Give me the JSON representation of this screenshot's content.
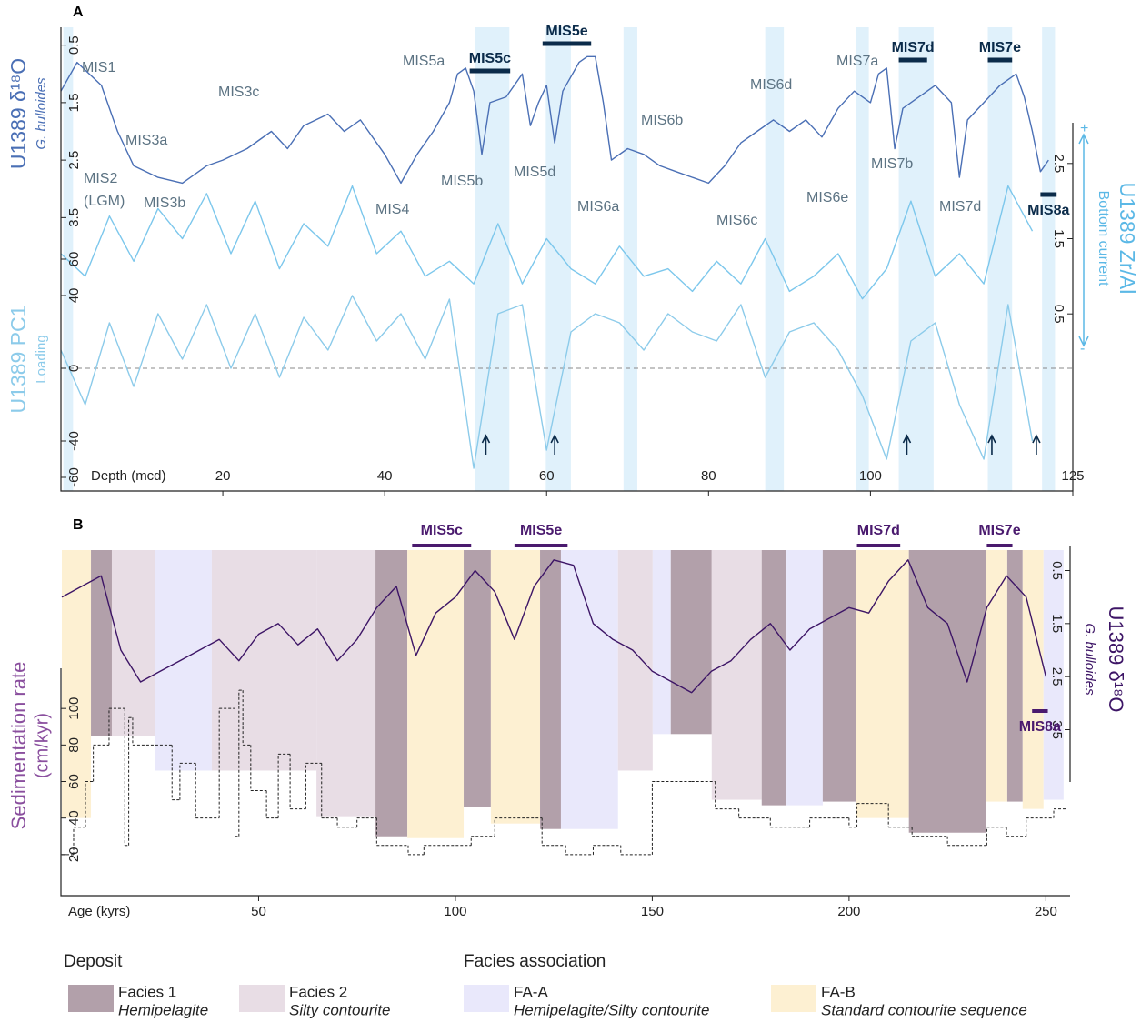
{
  "chart_data": [
    {
      "type": "line",
      "panel": "A",
      "xlabel": "Depth (mcd)",
      "xlim": [
        0,
        125
      ],
      "xticks": [
        20,
        40,
        60,
        80,
        100,
        125
      ],
      "ylabel": "U1389 δ¹⁸O",
      "ylabel_sub": "G. bulloides",
      "ylim": [
        0.3,
        3.7
      ],
      "yticks": [
        0.5,
        1.5,
        2.5,
        3.5
      ],
      "y_inverted": true,
      "y2label": "U1389 Zr/Al",
      "y2label_sub": "Bottom current",
      "y2lim": [
        0.2,
        2.8
      ],
      "y2ticks": [
        0.5,
        1.5,
        2.5
      ],
      "y2_arrow_labels": [
        "+",
        "-"
      ],
      "y3label": "U1389 PC1",
      "y3label_sub": "Loading",
      "y3lim": [
        -65,
        75
      ],
      "y3ticks": [
        -60,
        -40,
        0,
        40,
        60
      ],
      "bands": [
        [
          0.3,
          1.5
        ],
        [
          51.2,
          55.4
        ],
        [
          59.9,
          63
        ],
        [
          69.5,
          71.2
        ],
        [
          87,
          89.3
        ],
        [
          98.2,
          99.8
        ],
        [
          103.5,
          107.8
        ],
        [
          114.5,
          117.5
        ],
        [
          121.2,
          122.8
        ]
      ],
      "series": [
        {
          "name": "U1389 δ¹⁸O",
          "axis": "y",
          "color": "#4a6fb5",
          "x": [
            0,
            2,
            5,
            7,
            9,
            12,
            15,
            18,
            20,
            23,
            26,
            28,
            30,
            33,
            35,
            37,
            40,
            42,
            44,
            46,
            48,
            49,
            50,
            51,
            52,
            53,
            55,
            57,
            58,
            59,
            60,
            61,
            62,
            64,
            65,
            66,
            67,
            68,
            70,
            72,
            74,
            76,
            78,
            80,
            82,
            84,
            86,
            88,
            90,
            92,
            94,
            96,
            98,
            100,
            101,
            102,
            103,
            104,
            106,
            108,
            110,
            111,
            112,
            114,
            116,
            118,
            119,
            120,
            121,
            122
          ],
          "values": [
            1.3,
            0.8,
            1.2,
            2.0,
            2.6,
            2.8,
            2.9,
            2.6,
            2.5,
            2.3,
            2.0,
            2.3,
            1.9,
            1.7,
            2.0,
            1.8,
            2.4,
            2.9,
            2.4,
            2.0,
            1.5,
            1.0,
            0.9,
            1.3,
            2.4,
            1.5,
            1.4,
            1.0,
            1.9,
            1.5,
            1.2,
            2.2,
            1.3,
            0.8,
            0.7,
            0.7,
            1.5,
            2.5,
            2.3,
            2.4,
            2.6,
            2.7,
            2.8,
            2.9,
            2.6,
            2.2,
            2.0,
            1.8,
            2.0,
            1.8,
            2.1,
            1.6,
            1.3,
            1.5,
            1.0,
            0.9,
            2.3,
            1.6,
            1.4,
            1.2,
            1.5,
            2.8,
            1.8,
            1.5,
            1.2,
            1.0,
            1.4,
            2.0,
            2.7,
            2.5
          ]
        },
        {
          "name": "U1389 Zr/Al",
          "axis": "y2",
          "color": "#7cc7ec",
          "x": [
            0,
            3,
            6,
            9,
            12,
            15,
            18,
            21,
            24,
            27,
            30,
            33,
            36,
            39,
            42,
            45,
            48,
            51,
            54,
            57,
            60,
            63,
            66,
            69,
            72,
            75,
            78,
            81,
            84,
            87,
            90,
            93,
            96,
            99,
            102,
            105,
            108,
            111,
            114,
            117,
            120
          ],
          "values": [
            1.3,
            1.0,
            1.8,
            1.2,
            1.9,
            1.5,
            2.1,
            1.3,
            2.0,
            1.1,
            1.7,
            1.4,
            2.2,
            1.3,
            1.6,
            1.0,
            1.2,
            0.9,
            1.7,
            0.9,
            1.5,
            1.1,
            0.9,
            1.4,
            1.0,
            1.1,
            0.8,
            1.2,
            0.9,
            1.5,
            0.8,
            1.0,
            1.3,
            0.7,
            1.1,
            2.0,
            1.0,
            1.3,
            0.9,
            2.2,
            1.6
          ]
        },
        {
          "name": "U1389 PC1",
          "axis": "y3",
          "color": "#8ccbea",
          "x": [
            0,
            3,
            6,
            9,
            12,
            15,
            18,
            21,
            24,
            27,
            30,
            33,
            36,
            39,
            42,
            45,
            48,
            51,
            54,
            57,
            60,
            63,
            66,
            69,
            72,
            75,
            78,
            81,
            84,
            87,
            90,
            93,
            96,
            99,
            102,
            105,
            108,
            111,
            114,
            117,
            120
          ],
          "values": [
            10,
            -20,
            25,
            -10,
            30,
            5,
            35,
            0,
            30,
            -5,
            28,
            10,
            40,
            15,
            30,
            5,
            38,
            -55,
            30,
            35,
            -45,
            20,
            30,
            25,
            10,
            30,
            20,
            15,
            35,
            -5,
            20,
            25,
            10,
            -15,
            -50,
            15,
            25,
            -20,
            -50,
            35,
            -40
          ]
        }
      ],
      "annotations": [
        {
          "text": "MIS1"
        },
        {
          "text": "MIS3a"
        },
        {
          "text": "MIS2"
        },
        {
          "text": "(LGM)"
        },
        {
          "text": "MIS3b"
        },
        {
          "text": "MIS3c"
        },
        {
          "text": "MIS4"
        },
        {
          "text": "MIS5a"
        },
        {
          "text": "MIS5b"
        },
        {
          "text": "MIS5d"
        },
        {
          "text": "MIS6a"
        },
        {
          "text": "MIS6b"
        },
        {
          "text": "MIS6c"
        },
        {
          "text": "MIS6d"
        },
        {
          "text": "MIS6e"
        },
        {
          "text": "MIS7a"
        },
        {
          "text": "MIS7b"
        },
        {
          "text": "MIS7d"
        }
      ],
      "stages": [
        {
          "text": "MIS5c",
          "range": [
            50.5,
            55.5
          ]
        },
        {
          "text": "MIS5e",
          "range": [
            59.5,
            65.5
          ]
        },
        {
          "text": "MIS7d",
          "range": [
            103.5,
            107
          ]
        },
        {
          "text": "MIS7e",
          "range": [
            114.5,
            117.5
          ]
        },
        {
          "text": "MIS8a",
          "range": [
            121,
            123
          ]
        }
      ]
    },
    {
      "type": "line",
      "panel": "B",
      "xlabel": "Age (kyrs)",
      "xlim": [
        0,
        255
      ],
      "xticks": [
        50,
        100,
        150,
        200,
        250
      ],
      "ylabel": "Sedimentation rate",
      "ylabel_sub": "(cm/kyr)",
      "ylim": [
        0,
        122
      ],
      "yticks": [
        20,
        40,
        60,
        80,
        100
      ],
      "y2label": "U1389 δ¹⁸O",
      "y2label_sub": "G. bulloides",
      "y2lim": [
        0.2,
        3.8
      ],
      "y2ticks": [
        0.5,
        1.5,
        2.5,
        3.5
      ],
      "y2_inverted": true,
      "series": [
        {
          "name": "U1389 δ¹⁸O",
          "axis": "y2",
          "color": "#3d1566",
          "x": [
            0,
            5,
            10,
            15,
            20,
            25,
            30,
            35,
            40,
            45,
            50,
            55,
            60,
            65,
            70,
            75,
            80,
            85,
            90,
            95,
            100,
            105,
            110,
            115,
            120,
            125,
            130,
            135,
            140,
            145,
            150,
            155,
            160,
            165,
            170,
            175,
            180,
            185,
            190,
            195,
            200,
            205,
            210,
            215,
            220,
            225,
            230,
            235,
            240,
            245,
            250
          ],
          "values": [
            1.0,
            0.8,
            0.6,
            2.0,
            2.6,
            2.4,
            2.2,
            2.0,
            1.8,
            2.2,
            1.7,
            1.5,
            1.9,
            1.6,
            2.2,
            1.8,
            1.2,
            0.8,
            2.1,
            1.3,
            1.0,
            0.5,
            0.9,
            1.8,
            0.8,
            0.3,
            0.4,
            1.5,
            1.8,
            2.0,
            2.4,
            2.6,
            2.8,
            2.4,
            2.2,
            1.8,
            1.5,
            2.0,
            1.6,
            1.4,
            1.2,
            1.3,
            0.7,
            0.3,
            1.2,
            1.5,
            2.6,
            1.2,
            0.6,
            1.0,
            2.5
          ]
        },
        {
          "name": "Sedimentation rate",
          "axis": "y",
          "color": "#222222",
          "step": true,
          "x": [
            0,
            3,
            6,
            8,
            12,
            16,
            17,
            18,
            28,
            30,
            34,
            40,
            44,
            45,
            46,
            48,
            52,
            55,
            58,
            62,
            66,
            70,
            75,
            80,
            88,
            92,
            104,
            110,
            122,
            128,
            135,
            142,
            150,
            160,
            166,
            172,
            180,
            190,
            200,
            202,
            210,
            216,
            225,
            235,
            240,
            245,
            252
          ],
          "values": [
            20,
            35,
            60,
            80,
            100,
            25,
            95,
            80,
            50,
            70,
            40,
            100,
            30,
            110,
            80,
            55,
            40,
            75,
            45,
            70,
            40,
            35,
            40,
            25,
            20,
            25,
            30,
            40,
            25,
            20,
            25,
            20,
            60,
            60,
            45,
            40,
            35,
            40,
            35,
            48,
            35,
            30,
            25,
            35,
            30,
            40,
            45
          ]
        }
      ],
      "facies_intervals": [
        {
          "start": 0,
          "end": 7.4,
          "facies": 3,
          "rate": 40
        },
        {
          "start": 7.4,
          "end": 12.7,
          "facies": 0,
          "rate": 85
        },
        {
          "start": 12.7,
          "end": 23.6,
          "facies": 1,
          "rate": 85
        },
        {
          "start": 23.6,
          "end": 38.1,
          "facies": 2,
          "rate": 66
        },
        {
          "start": 38.1,
          "end": 64.7,
          "facies": 1,
          "rate": 66
        },
        {
          "start": 64.7,
          "end": 79.7,
          "facies": 1,
          "rate": 41
        },
        {
          "start": 79.7,
          "end": 87.8,
          "facies": 0,
          "rate": 30
        },
        {
          "start": 87.8,
          "end": 102.1,
          "facies": 3,
          "rate": 29
        },
        {
          "start": 102.1,
          "end": 109,
          "facies": 0,
          "rate": 46
        },
        {
          "start": 109,
          "end": 121.5,
          "facies": 3,
          "rate": 37
        },
        {
          "start": 121.5,
          "end": 126.8,
          "facies": 0,
          "rate": 34
        },
        {
          "start": 126.8,
          "end": 141.3,
          "facies": 2,
          "rate": 34
        },
        {
          "start": 141.3,
          "end": 150.1,
          "facies": 1,
          "rate": 66
        },
        {
          "start": 150.1,
          "end": 154.7,
          "facies": 2,
          "rate": 86
        },
        {
          "start": 154.7,
          "end": 165.1,
          "facies": 0,
          "rate": 86
        },
        {
          "start": 165.1,
          "end": 177.8,
          "facies": 1,
          "rate": 50
        },
        {
          "start": 177.8,
          "end": 184.1,
          "facies": 0,
          "rate": 47
        },
        {
          "start": 184.1,
          "end": 193.3,
          "facies": 2,
          "rate": 47
        },
        {
          "start": 193.3,
          "end": 201.8,
          "facies": 0,
          "rate": 49
        },
        {
          "start": 201.8,
          "end": 215.2,
          "facies": 3,
          "rate": 40
        },
        {
          "start": 215.2,
          "end": 234.9,
          "facies": 0,
          "rate": 32
        },
        {
          "start": 234.9,
          "end": 240.2,
          "facies": 3,
          "rate": 49
        },
        {
          "start": 240.2,
          "end": 244.1,
          "facies": 0,
          "rate": 49
        },
        {
          "start": 244.1,
          "end": 249.4,
          "facies": 3,
          "rate": 45
        },
        {
          "start": 249.4,
          "end": 254.5,
          "facies": 2,
          "rate": 50
        }
      ],
      "stages": [
        {
          "text": "MIS5c",
          "range": [
            89,
            104
          ]
        },
        {
          "text": "MIS5e",
          "range": [
            115,
            128.5
          ]
        },
        {
          "text": "MIS7d",
          "range": [
            202,
            213
          ]
        },
        {
          "text": "MIS7e",
          "range": [
            235,
            241.5
          ]
        },
        {
          "text": "MIS8a",
          "range": [
            246.5,
            250.5
          ]
        }
      ]
    }
  ],
  "legend": [
    {
      "title": "Deposit",
      "items": [
        {
          "name": "Facies 1",
          "description": "Hemipelagite",
          "color": "#b2a0aa"
        },
        {
          "name": "Facies 2",
          "description": "Silty contourite",
          "color": "#e8dde5"
        }
      ]
    },
    {
      "title": "Facies association",
      "items": [
        {
          "name": "FA-A",
          "description": "Hemipelagite/Silty contourite",
          "color": "#e9e8fb"
        },
        {
          "name": "FA-B",
          "description": "Standard contourite sequence",
          "color": "#fdf0d2"
        }
      ]
    }
  ]
}
